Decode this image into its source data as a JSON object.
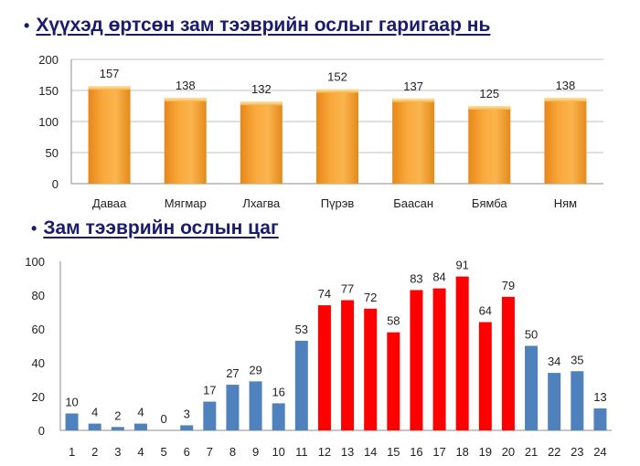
{
  "headings": {
    "chart1": "Хүүхэд өртсөн зам тээврийн ослыг гаригаар нь",
    "chart2": "Зам тээврийн ослын цаг"
  },
  "bullet": "•",
  "colors": {
    "heading": "#1a1a6e",
    "bar_orange_top": "#fcd27a",
    "bar_orange_mid": "#f7a43a",
    "bar_orange_edge": "#e08412",
    "bar_blue": "#4f81bd",
    "bar_red": "#ff0000",
    "gridline": "#bfbfbf"
  },
  "chart_data": [
    {
      "type": "bar",
      "title": "Хүүхэд өртсөн зам тээврийн ослыг гаригаар нь",
      "categories": [
        "Даваа",
        "Мягмар",
        "Лхагва",
        "Пүрэв",
        "Баасан",
        "Бямба",
        "Ням"
      ],
      "values": [
        157,
        138,
        132,
        152,
        137,
        125,
        138
      ],
      "ylim": [
        0,
        200
      ],
      "yticks": [
        0,
        50,
        100,
        150,
        200
      ],
      "grid": true,
      "legend": "none"
    },
    {
      "type": "bar",
      "title": "Зам тээврийн ослын цаг",
      "categories": [
        "1",
        "2",
        "3",
        "4",
        "5",
        "6",
        "7",
        "8",
        "9",
        "10",
        "11",
        "12",
        "13",
        "14",
        "15",
        "16",
        "17",
        "18",
        "19",
        "20",
        "21",
        "22",
        "23",
        "24"
      ],
      "values": [
        10,
        4,
        2,
        4,
        0,
        3,
        17,
        27,
        29,
        16,
        53,
        74,
        77,
        72,
        58,
        83,
        84,
        91,
        64,
        79,
        50,
        34,
        35,
        13
      ],
      "highlight_color_by_category": {
        "12": "red",
        "13": "red",
        "14": "red",
        "15": "red",
        "16": "red",
        "17": "red",
        "18": "red",
        "19": "red",
        "20": "red"
      },
      "default_color": "blue",
      "ylim": [
        0,
        100
      ],
      "yticks": [
        0,
        20,
        40,
        60,
        80,
        100
      ],
      "grid": false,
      "legend": "none"
    }
  ]
}
